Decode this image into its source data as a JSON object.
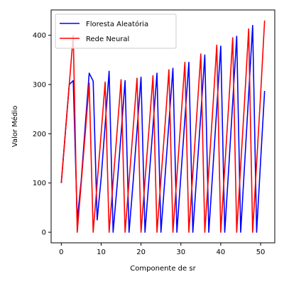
{
  "chart_data": {
    "type": "line",
    "title": "",
    "xlabel": "Componente de sr",
    "ylabel": "Valor Médio",
    "xlim": [
      -2.55,
      53.55
    ],
    "ylim": [
      -21.5,
      451.5
    ],
    "xticks": [
      0,
      10,
      20,
      30,
      40,
      50
    ],
    "yticks": [
      0,
      100,
      200,
      300,
      400
    ],
    "grid": false,
    "legend_position": "top-left",
    "series": [
      {
        "name": "Floresta Aleatória",
        "color": "#0000ff",
        "x": [
          0,
          1,
          2,
          3,
          4,
          5,
          6,
          7,
          8,
          9,
          10,
          11,
          12,
          13,
          14,
          15,
          16,
          17,
          18,
          19,
          20,
          21,
          22,
          23,
          24,
          25,
          26,
          27,
          28,
          29,
          30,
          31,
          32,
          33,
          34,
          35,
          36,
          37,
          38,
          39,
          40,
          41,
          42,
          43,
          44,
          45,
          46,
          47,
          48,
          49,
          50,
          51
        ],
        "y": [
          100,
          200,
          300,
          308,
          25,
          105,
          215,
          323,
          307,
          25,
          110,
          218,
          327,
          0,
          95,
          200,
          308,
          0,
          100,
          208,
          315,
          0,
          108,
          215,
          323,
          0,
          110,
          223,
          333,
          0,
          115,
          230,
          345,
          0,
          120,
          240,
          360,
          0,
          125,
          252,
          378,
          0,
          130,
          265,
          398,
          0,
          140,
          280,
          420,
          0,
          145,
          287
        ]
      },
      {
        "name": "Rede Neural",
        "color": "#ff0000",
        "x": [
          0,
          1,
          2,
          3,
          4,
          5,
          6,
          7,
          8,
          9,
          10,
          11,
          12,
          13,
          14,
          15,
          16,
          17,
          18,
          19,
          20,
          21,
          22,
          23,
          24,
          25,
          26,
          27,
          28,
          29,
          30,
          31,
          32,
          33,
          34,
          35,
          36,
          37,
          38,
          39,
          40,
          41,
          42,
          43,
          44,
          45,
          46,
          47,
          48,
          49,
          50,
          51
        ],
        "y": [
          100,
          200,
          300,
          400,
          0,
          100,
          200,
          303,
          0,
          100,
          200,
          305,
          0,
          103,
          205,
          310,
          0,
          103,
          208,
          313,
          0,
          105,
          210,
          318,
          0,
          108,
          215,
          330,
          0,
          113,
          228,
          345,
          0,
          120,
          240,
          362,
          0,
          125,
          250,
          380,
          0,
          130,
          260,
          395,
          0,
          135,
          270,
          413,
          0,
          140,
          280,
          430
        ]
      }
    ]
  }
}
